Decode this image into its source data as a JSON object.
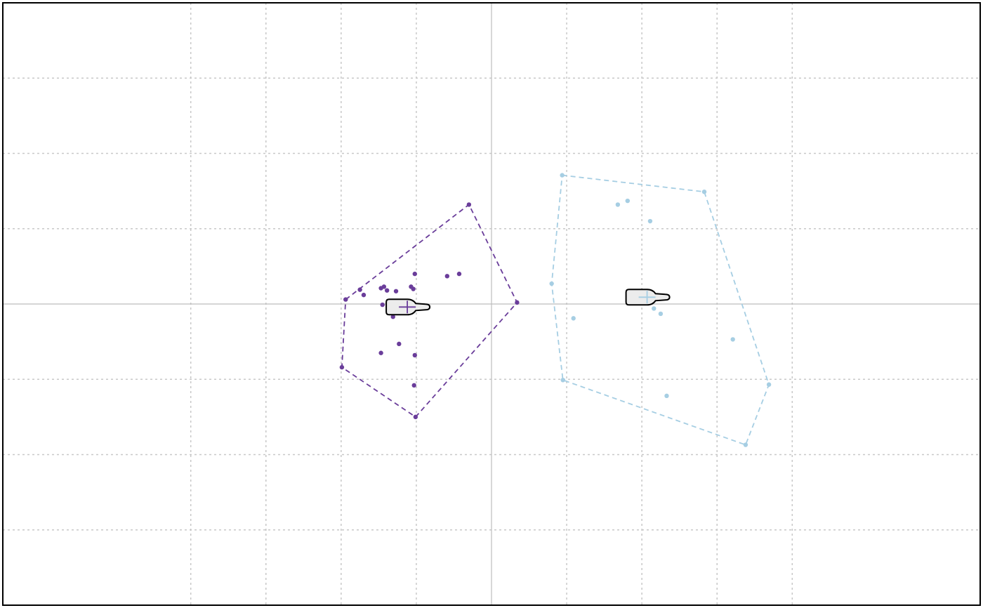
{
  "chart_data": {
    "type": "scatter",
    "title": "",
    "xlabel": "",
    "ylabel": "",
    "xlim": [
      -6.5,
      6.5
    ],
    "ylim": [
      -4,
      4
    ],
    "grid": true,
    "grid_style": "dotted",
    "x_gridlines": [
      -4,
      -3,
      -2,
      -1,
      1,
      2,
      3,
      4
    ],
    "y_gridlines": [
      -3,
      -2,
      -1,
      1,
      2,
      3
    ],
    "reference_lines": {
      "x": 0,
      "y": 0
    },
    "legend": "none",
    "series": [
      {
        "color": "#6a3d9a",
        "points": [
          [
            -1.75,
            0.19
          ],
          [
            -1.7,
            0.12
          ],
          [
            -1.47,
            0.21
          ],
          [
            -1.43,
            0.23
          ],
          [
            -1.39,
            0.18
          ],
          [
            -1.27,
            0.17
          ],
          [
            -1.07,
            0.23
          ],
          [
            -1.04,
            0.2
          ],
          [
            -1.02,
            0.4
          ],
          [
            -0.59,
            0.37
          ],
          [
            -0.43,
            0.4
          ],
          [
            -1.45,
            -0.01
          ],
          [
            -1.15,
            -0.04
          ],
          [
            -1.04,
            -0.09
          ],
          [
            -1.31,
            -0.17
          ],
          [
            -1.02,
            -0.68
          ],
          [
            -1.47,
            -0.65
          ],
          [
            -1.23,
            -0.53
          ],
          [
            -1.03,
            -1.08
          ],
          [
            -1.94,
            0.06
          ],
          [
            -0.3,
            1.32
          ],
          [
            0.34,
            0.02
          ],
          [
            -1.99,
            -0.84
          ],
          [
            -1.01,
            -1.5
          ]
        ],
        "hull": [
          [
            -1.94,
            0.06
          ],
          [
            -0.3,
            1.32
          ],
          [
            0.34,
            0.02
          ],
          [
            -1.01,
            -1.5
          ],
          [
            -1.99,
            -0.84
          ]
        ],
        "centroid": [
          -1.12,
          -0.04
        ]
      },
      {
        "color": "#a6cee3",
        "points": [
          [
            1.68,
            1.32
          ],
          [
            1.81,
            1.37
          ],
          [
            2.11,
            1.1
          ],
          [
            2.16,
            -0.06
          ],
          [
            2.25,
            -0.13
          ],
          [
            1.09,
            -0.19
          ],
          [
            3.21,
            -0.47
          ],
          [
            2.33,
            -1.22
          ],
          [
            0.94,
            1.71
          ],
          [
            2.83,
            1.49
          ],
          [
            0.8,
            0.27
          ],
          [
            3.69,
            -1.07
          ],
          [
            3.38,
            -1.87
          ],
          [
            0.95,
            -1.01
          ]
        ],
        "hull": [
          [
            0.94,
            1.71
          ],
          [
            2.83,
            1.49
          ],
          [
            3.69,
            -1.07
          ],
          [
            3.38,
            -1.87
          ],
          [
            0.95,
            -1.01
          ],
          [
            0.8,
            0.27
          ]
        ],
        "centroid": [
          2.07,
          0.09
        ]
      }
    ],
    "centroid_markers": [
      {
        "icon": "bottle-icon",
        "series": 0
      },
      {
        "icon": "bottle-icon",
        "series": 1
      }
    ]
  }
}
